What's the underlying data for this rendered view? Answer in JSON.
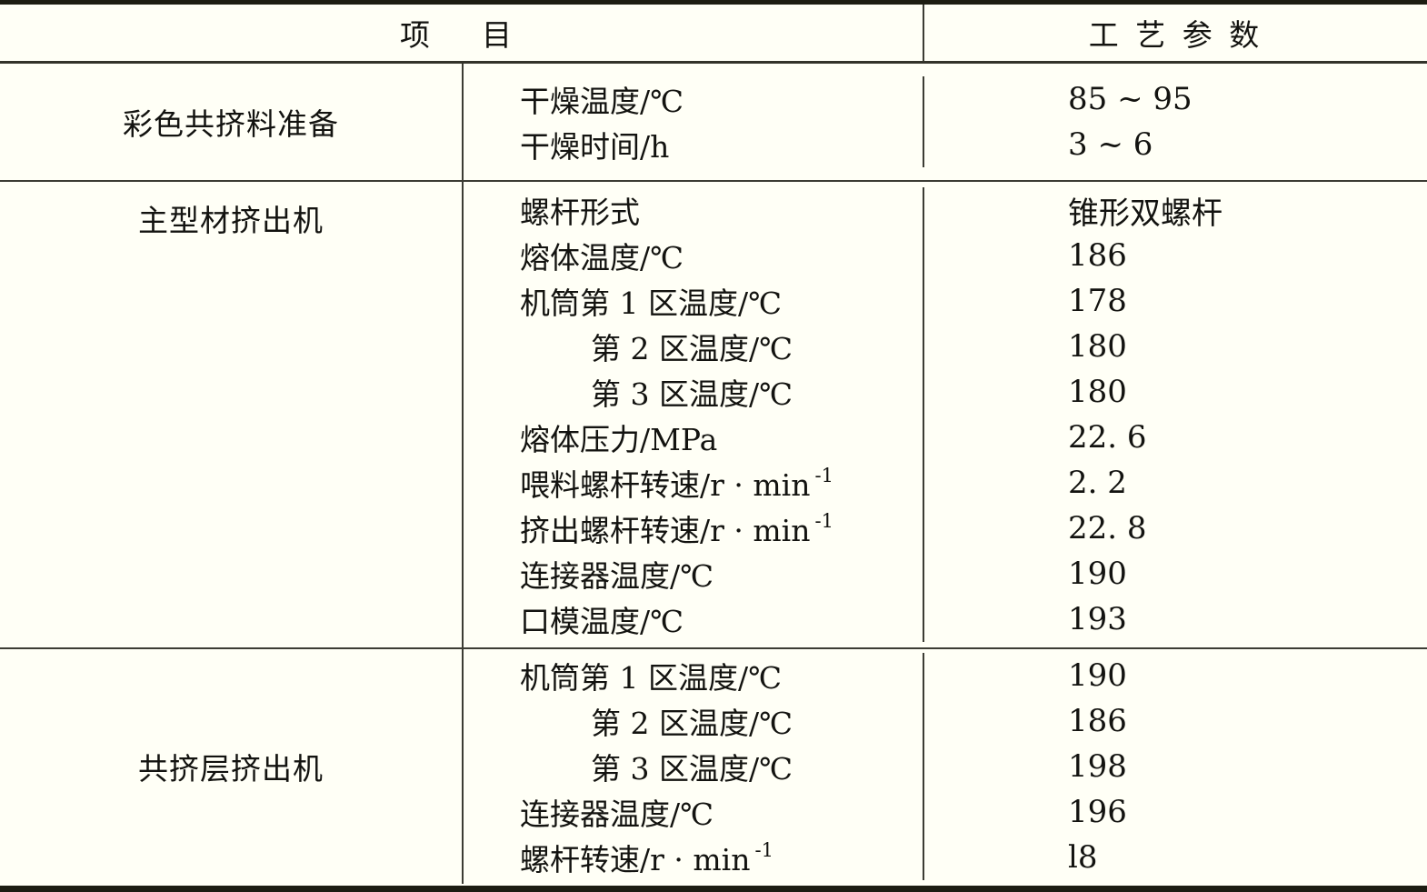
{
  "table": {
    "header": {
      "item_col": "项　目",
      "param_col": "工 艺 参 数"
    },
    "groups": [
      {
        "name": "彩色共挤料准备",
        "rows": [
          {
            "item": "干燥温度/℃",
            "sup": "",
            "value": "85 ~ 95"
          },
          {
            "item": "干燥时间/h",
            "sup": "",
            "value": "3 ~ 6"
          }
        ]
      },
      {
        "name": "主型材挤出机",
        "rows": [
          {
            "item": "螺杆形式",
            "sup": "",
            "value": "锥形双螺杆"
          },
          {
            "item": "熔体温度/℃",
            "sup": "",
            "value": "186"
          },
          {
            "item": "机筒第 1 区温度/℃",
            "sup": "",
            "value": "178"
          },
          {
            "item": "第 2 区温度/℃",
            "sup": "",
            "value": "180"
          },
          {
            "item": "第 3 区温度/℃",
            "sup": "",
            "value": "180"
          },
          {
            "item": "熔体压力/MPa",
            "sup": "",
            "value": "22. 6"
          },
          {
            "item": "喂料螺杆转速/r · min",
            "sup": "-1",
            "value": "2. 2"
          },
          {
            "item": "挤出螺杆转速/r · min",
            "sup": "-1",
            "value": "22. 8"
          },
          {
            "item": "连接器温度/℃",
            "sup": "",
            "value": "190"
          },
          {
            "item": "口模温度/℃",
            "sup": "",
            "value": "193"
          }
        ]
      },
      {
        "name": "共挤层挤出机",
        "rows": [
          {
            "item": "机筒第 1 区温度/℃",
            "sup": "",
            "value": "190"
          },
          {
            "item": "第 2 区温度/℃",
            "sup": "",
            "value": "186"
          },
          {
            "item": "第 3 区温度/℃",
            "sup": "",
            "value": "198"
          },
          {
            "item": "连接器温度/℃",
            "sup": "",
            "value": "196"
          },
          {
            "item": "螺杆转速/r · min",
            "sup": "-1",
            "value": "l8"
          }
        ]
      }
    ]
  }
}
